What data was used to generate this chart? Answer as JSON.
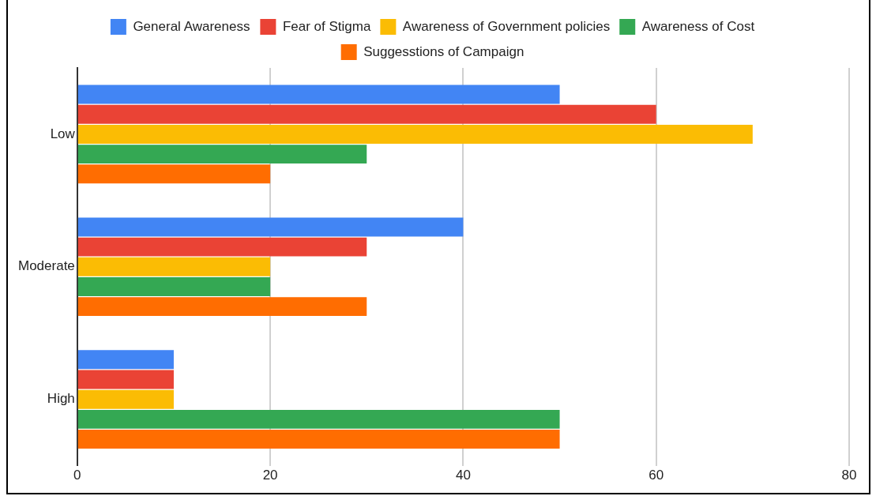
{
  "chart_data": {
    "type": "bar",
    "orientation": "horizontal",
    "categories": [
      "Low",
      "Moderate",
      "High"
    ],
    "series": [
      {
        "name": "General Awareness",
        "color": "#4285f4",
        "values": [
          50,
          40,
          10
        ]
      },
      {
        "name": "Fear of Stigma",
        "color": "#ea4335",
        "values": [
          60,
          30,
          10
        ]
      },
      {
        "name": "Awareness of Government policies",
        "color": "#fbbc04",
        "values": [
          70,
          20,
          10
        ]
      },
      {
        "name": "Awareness of Cost",
        "color": "#34a853",
        "values": [
          30,
          20,
          50
        ]
      },
      {
        "name": "Suggesstions of Campaign",
        "color": "#ff6d01",
        "values": [
          20,
          30,
          50
        ]
      }
    ],
    "xlim": [
      0,
      80
    ],
    "xticks": [
      0,
      20,
      40,
      60,
      80
    ],
    "grid": "x",
    "legend": "top"
  }
}
